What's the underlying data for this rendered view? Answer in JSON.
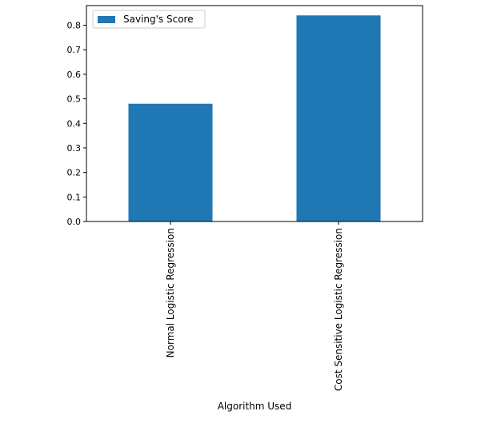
{
  "chart_data": {
    "type": "bar",
    "title": "",
    "xlabel": "Algorithm Used",
    "ylabel": "",
    "categories": [
      "Normal Logistic Regression",
      "Cost Sensitive Logistic Regression"
    ],
    "series": [
      {
        "name": "Saving's Score",
        "values": [
          0.48,
          0.84
        ],
        "color": "#1f77b4"
      }
    ],
    "ylim": [
      0,
      0.88
    ],
    "yticks": [
      0.0,
      0.1,
      0.2,
      0.3,
      0.4,
      0.5,
      0.6,
      0.7,
      0.8
    ],
    "ytick_labels": [
      "0.0",
      "0.1",
      "0.2",
      "0.3",
      "0.4",
      "0.5",
      "0.6",
      "0.7",
      "0.8"
    ],
    "grid": false,
    "legend_position": "top-left"
  }
}
